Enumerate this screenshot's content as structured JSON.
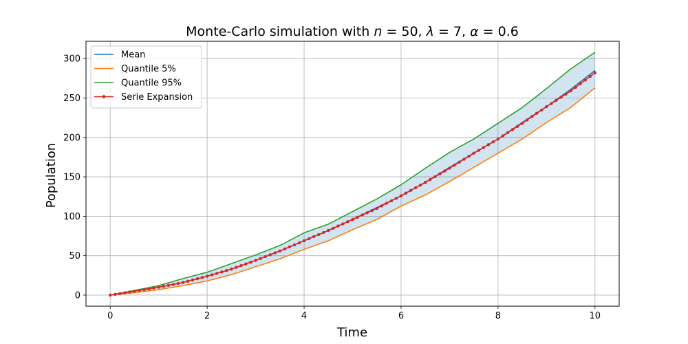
{
  "chart_data": {
    "type": "line",
    "title": "Monte-Carlo simulation with n = 50, λ = 7, α = 0.6",
    "title_parts": {
      "prefix": "Monte-Carlo simulation with ",
      "n_symbol": "n",
      "n_value": "50",
      "lambda_symbol": "λ",
      "lambda_value": "7",
      "alpha_symbol": "α",
      "alpha_value": "0.6"
    },
    "xlabel": "Time",
    "ylabel": "Population",
    "xlim": [
      -0.5,
      10.5
    ],
    "ylim": [
      -14,
      322
    ],
    "xticks": [
      0,
      2,
      4,
      6,
      8,
      10
    ],
    "yticks": [
      0,
      50,
      100,
      150,
      200,
      250,
      300
    ],
    "grid": true,
    "legend_position": "upper-left",
    "x": [
      0,
      0.5,
      1,
      1.5,
      2,
      2.5,
      3,
      3.5,
      4,
      4.5,
      5,
      5.5,
      6,
      6.5,
      7,
      7.5,
      8,
      8.5,
      9,
      9.5,
      10
    ],
    "series": [
      {
        "name": "Mean",
        "color": "#1f77b4",
        "marker": "none",
        "values": [
          0,
          5,
          10,
          16,
          24,
          33,
          44,
          56,
          69,
          82,
          96,
          111,
          126,
          143,
          162,
          180,
          198,
          219,
          239,
          261,
          285
        ]
      },
      {
        "name": "Quantile 5%",
        "color": "#ff7f0e",
        "marker": "none",
        "values": [
          0,
          3,
          7,
          12,
          18,
          26,
          36,
          46,
          58,
          69,
          83,
          96,
          113,
          127,
          144,
          162,
          180,
          198,
          219,
          238,
          263
        ]
      },
      {
        "name": "Quantile 95%",
        "color": "#2ca02c",
        "marker": "none",
        "values": [
          0,
          6,
          12,
          21,
          29,
          40,
          51,
          63,
          79,
          90,
          106,
          122,
          140,
          161,
          181,
          198,
          218,
          238,
          262,
          287,
          308
        ]
      },
      {
        "name": "Serie Expansion",
        "color": "#d62728",
        "marker": "circle",
        "values": [
          0,
          5,
          10,
          16,
          24,
          33,
          44,
          56,
          69,
          82,
          96,
          110,
          126,
          143,
          161,
          180,
          198,
          218,
          239,
          259,
          282
        ]
      }
    ],
    "band": {
      "lower_series": "Quantile 5%",
      "upper_series": "Quantile 95%",
      "color": "#1f77b4",
      "opacity": 0.2
    }
  }
}
